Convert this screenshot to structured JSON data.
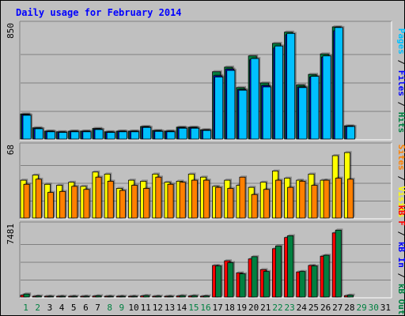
{
  "chart_data": {
    "type": "bar",
    "title": "Daily usage for February 2014",
    "categories": [
      "1",
      "2",
      "3",
      "4",
      "5",
      "6",
      "7",
      "8",
      "9",
      "10",
      "11",
      "12",
      "13",
      "14",
      "15",
      "16",
      "17",
      "18",
      "19",
      "20",
      "21",
      "22",
      "23",
      "24",
      "25",
      "26",
      "27",
      "28",
      "29",
      "30",
      "31"
    ],
    "weekend_days": [
      "1",
      "2",
      "8",
      "9",
      "15",
      "16",
      "22",
      "23",
      "29",
      "30"
    ],
    "colors": {
      "hits": "#008040",
      "files": "#0000ff",
      "pages": "#00c0ff",
      "visits": "#ffff00",
      "sites": "#ff8000",
      "kb_f": "#ff0000",
      "kb_in": "#0000ff",
      "kb_out": "#008040",
      "text_blue": "#0000ff",
      "weekend_green": "#008040",
      "weekday_black": "#000000",
      "background": "#c0c0c0"
    },
    "panels": [
      {
        "id": "hits",
        "ymax_label": "850",
        "ymax": 850,
        "right_label_parts": [
          {
            "text": "Pages",
            "color": "#00c0ff"
          },
          {
            "text": " / ",
            "color": "#000000"
          },
          {
            "text": "Files",
            "color": "#0000ff"
          },
          {
            "text": " / ",
            "color": "#000000"
          },
          {
            "text": "Hits",
            "color": "#008040"
          }
        ],
        "series": [
          {
            "name": "Hits",
            "color": "#008040",
            "values": [
              190,
              85,
              60,
              55,
              60,
              60,
              80,
              55,
              60,
              60,
              95,
              65,
              60,
              90,
              90,
              70,
              510,
              545,
              390,
              630,
              425,
              725,
              810,
              410,
              490,
              645,
              850,
              100,
              0,
              0,
              0
            ]
          },
          {
            "name": "Files",
            "color": "#0000ff",
            "values": [
              185,
              80,
              58,
              52,
              58,
              58,
              75,
              52,
              58,
              58,
              90,
              60,
              58,
              85,
              85,
              68,
              480,
              530,
              375,
              600,
              405,
              690,
              790,
              395,
              470,
              620,
              820,
              95,
              0,
              0,
              0
            ]
          },
          {
            "name": "Pages",
            "color": "#00c0ff",
            "values": [
              180,
              78,
              55,
              50,
              55,
              55,
              72,
              50,
              55,
              55,
              88,
              58,
              55,
              82,
              82,
              65,
              470,
              520,
              370,
              610,
              395,
              705,
              800,
              390,
              475,
              630,
              845,
              95,
              0,
              0,
              0
            ]
          }
        ]
      },
      {
        "id": "visits",
        "ymax_label": "68",
        "ymax": 68,
        "right_label_parts": [
          {
            "text": "Sites",
            "color": "#ff8000"
          },
          {
            "text": " / ",
            "color": "#000000"
          },
          {
            "text": "Visits",
            "color": "#ffff00"
          }
        ],
        "series": [
          {
            "name": "Visits",
            "color": "#ffff00",
            "values": [
              37,
              42,
              33,
              32,
              35,
              31,
              45,
              43,
              29,
              37,
              36,
              43,
              35,
              36,
              43,
              40,
              31,
              37,
              32,
              30,
              35,
              46,
              39,
              37,
              43,
              37,
              61,
              64,
              0,
              0,
              0
            ]
          },
          {
            "name": "Sites",
            "color": "#ff8000",
            "values": [
              33,
              38,
              25,
              26,
              31,
              28,
              40,
              36,
              27,
              32,
              29,
              40,
              33,
              35,
              37,
              37,
              30,
              29,
              40,
              23,
              28,
              37,
              30,
              36,
              32,
              37,
              39,
              38,
              0,
              0,
              0
            ]
          }
        ]
      },
      {
        "id": "kbytes",
        "ymax_label": "7481",
        "ymax": 7481,
        "right_label_parts": [
          {
            "text": "kB F",
            "color": "#ff0000"
          },
          {
            "text": " / ",
            "color": "#000000"
          },
          {
            "text": "kB In",
            "color": "#0000ff"
          },
          {
            "text": " / ",
            "color": "#000000"
          },
          {
            "text": "kB Out",
            "color": "#008040"
          }
        ],
        "series": [
          {
            "name": "kB F",
            "color": "#ff0000",
            "values": [
              200,
              80,
              60,
              60,
              60,
              60,
              100,
              60,
              60,
              60,
              120,
              70,
              60,
              110,
              110,
              90,
              3400,
              3900,
              2600,
              4100,
              2950,
              5200,
              6400,
              2700,
              3400,
              4400,
              6900,
              150,
              0,
              0,
              0
            ]
          },
          {
            "name": "kB Out",
            "color": "#008040",
            "values": [
              330,
              120,
              80,
              80,
              80,
              80,
              140,
              80,
              80,
              80,
              160,
              100,
              80,
              150,
              150,
              120,
              3350,
              3700,
              2500,
              4350,
              2750,
              5500,
              6600,
              2750,
              3350,
              4500,
              7200,
              200,
              0,
              0,
              0
            ]
          }
        ]
      }
    ]
  }
}
